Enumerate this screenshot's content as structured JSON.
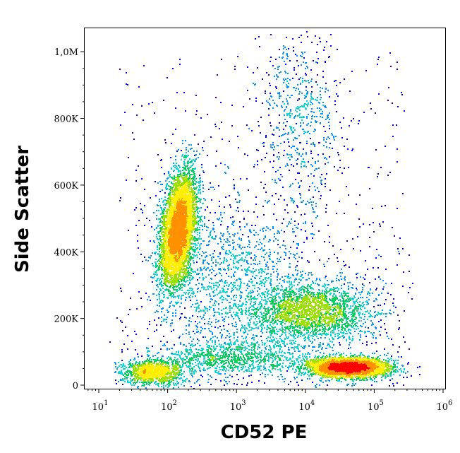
{
  "chart_data": {
    "type": "scatter",
    "subtype": "flow-cytometry-density-plot",
    "xlabel": "CD52 PE",
    "ylabel": "Side Scatter",
    "xscale": "log",
    "xlim": [
      7,
      11000000
    ],
    "ylim": [
      -10000,
      1050000
    ],
    "x_ticks": [
      {
        "base": "10",
        "exp": "1",
        "value": 10
      },
      {
        "base": "10",
        "exp": "2",
        "value": 100
      },
      {
        "base": "10",
        "exp": "3",
        "value": 1000
      },
      {
        "base": "10",
        "exp": "4",
        "value": 10000
      },
      {
        "base": "10",
        "exp": "5",
        "value": 100000
      },
      {
        "base": "10",
        "exp": "6",
        "value": 1000000
      }
    ],
    "y_ticks": [
      {
        "label": "0",
        "value": 0
      },
      {
        "label": "200K",
        "value": 200000
      },
      {
        "label": "400K",
        "value": 400000
      },
      {
        "label": "600K",
        "value": 600000
      },
      {
        "label": "800K",
        "value": 800000
      },
      {
        "label": "1,0M",
        "value": 1000000
      }
    ],
    "populations": [
      {
        "name_visible": false,
        "x_center": 140,
        "y_center": 470000,
        "x_spread_decades": 0.12,
        "y_spread": 85000,
        "tilt": 0.55,
        "count": 5200,
        "peak_density": "high"
      },
      {
        "name_visible": false,
        "x_center": 40000,
        "y_center": 55000,
        "x_spread_decades": 0.28,
        "y_spread": 14000,
        "tilt": 0.0,
        "count": 4200,
        "peak_density": "high"
      },
      {
        "name_visible": false,
        "x_center": 60,
        "y_center": 40000,
        "x_spread_decades": 0.22,
        "y_spread": 18000,
        "tilt": 0.0,
        "count": 1100,
        "peak_density": "medium"
      },
      {
        "name_visible": false,
        "x_center": 12000,
        "y_center": 220000,
        "x_spread_decades": 0.45,
        "y_spread": 45000,
        "tilt": 0.0,
        "count": 2300,
        "peak_density": "low"
      },
      {
        "name_visible": false,
        "x_center": 8000,
        "y_center": 800000,
        "x_spread_decades": 0.3,
        "y_spread": 150000,
        "tilt": 0.0,
        "count": 600,
        "peak_density": "low"
      },
      {
        "name_visible": false,
        "x_center": 800,
        "y_center": 300000,
        "x_spread_decades": 0.55,
        "y_spread": 130000,
        "tilt": 0.0,
        "count": 1400,
        "peak_density": "low"
      },
      {
        "name_visible": false,
        "x_center": 900,
        "y_center": 80000,
        "x_spread_decades": 0.6,
        "y_spread": 25000,
        "tilt": 0.0,
        "count": 900,
        "peak_density": "low"
      }
    ],
    "color_scale": [
      "#0000ff",
      "#0090ff",
      "#00d8d8",
      "#00d060",
      "#9ae000",
      "#ffee00",
      "#ff9000",
      "#ff0000"
    ],
    "grid": false,
    "legend": "none"
  }
}
